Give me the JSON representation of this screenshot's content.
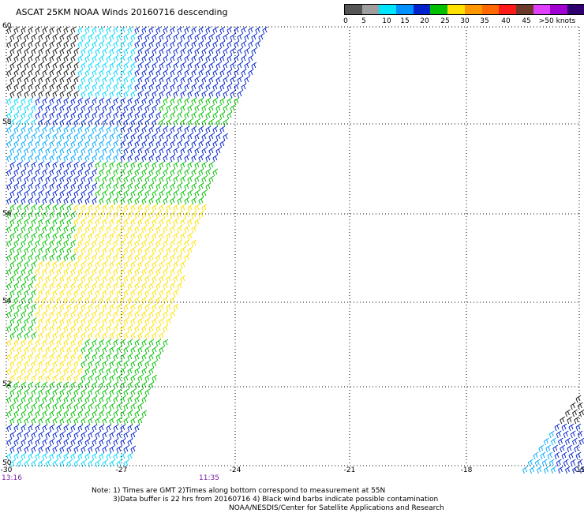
{
  "title": "ASCAT 25KM NOAA Winds 20160716 descending",
  "legend": {
    "colors": [
      "#555555",
      "#9e9e9e",
      "#00e5ff",
      "#0091ff",
      "#0022cc",
      "#00c000",
      "#ffe100",
      "#ff9800",
      "#ff6a00",
      "#ff1a1a",
      "#6b3a2a",
      "#e040fb",
      "#a000d0",
      "#300070"
    ],
    "labels": [
      "0",
      "5",
      "10",
      "15",
      "20",
      "25",
      "30",
      "35",
      "40",
      "45",
      ">50 knots"
    ]
  },
  "axes": {
    "x_ticks": [
      "-30",
      "-27",
      "-24",
      "-21",
      "-18",
      "-15"
    ],
    "y_ticks": [
      "60",
      "58",
      "56",
      "54",
      "52",
      "50"
    ]
  },
  "times": [
    "13:16",
    "11:35"
  ],
  "notes": {
    "line1": "Note: 1) Times are GMT 2)Times along bottom correspond to measurement at 55N",
    "line2": "3)Data buffer is 22 hrs from 20160716 4) Black wind barbs indicate possible contamination",
    "line3": "NOAA/NESDIS/Center for Satellite Applications and Research"
  }
}
